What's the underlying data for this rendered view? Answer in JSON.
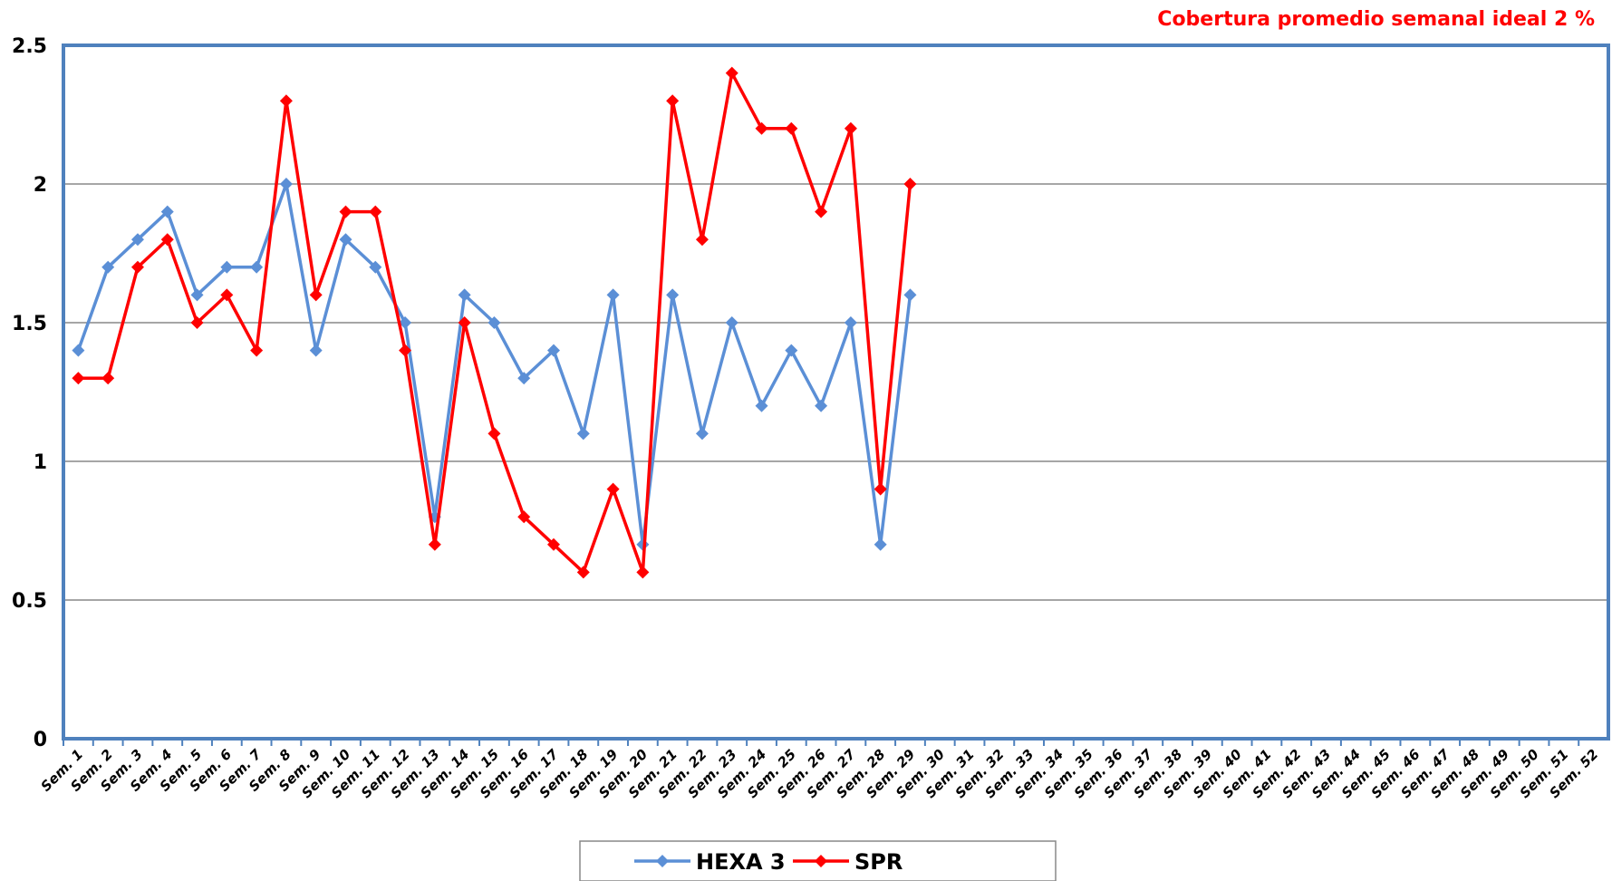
{
  "chart_data": {
    "type": "line",
    "title": "Cobertura promedio semanal ideal 2 %",
    "categories": [
      "Sem. 1",
      "Sem. 2",
      "Sem. 3",
      "Sem. 4",
      "Sem. 5",
      "Sem. 6",
      "Sem. 7",
      "Sem. 8",
      "Sem. 9",
      "Sem. 10",
      "Sem. 11",
      "Sem. 12",
      "Sem. 13",
      "Sem. 14",
      "Sem. 15",
      "Sem. 16",
      "Sem. 17",
      "Sem. 18",
      "Sem. 19",
      "Sem. 20",
      "Sem. 21",
      "Sem. 22",
      "Sem. 23",
      "Sem. 24",
      "Sem. 25",
      "Sem. 26",
      "Sem. 27",
      "Sem. 28",
      "Sem. 29",
      "Sem. 30",
      "Sem. 31",
      "Sem. 32",
      "Sem. 33",
      "Sem. 34",
      "Sem. 35",
      "Sem. 36",
      "Sem. 37",
      "Sem. 38",
      "Sem. 39",
      "Sem. 40",
      "Sem. 41",
      "Sem. 42",
      "Sem. 43",
      "Sem. 44",
      "Sem. 45",
      "Sem. 46",
      "Sem. 47",
      "Sem. 48",
      "Sem. 49",
      "Sem. 50",
      "Sem. 51",
      "Sem. 52"
    ],
    "series": [
      {
        "name": "HEXA 3",
        "color": "#5b8fd6",
        "values": [
          1.4,
          1.7,
          1.8,
          1.9,
          1.6,
          1.7,
          1.7,
          2.0,
          1.4,
          1.8,
          1.7,
          1.5,
          0.8,
          1.6,
          1.5,
          1.3,
          1.4,
          1.1,
          1.6,
          0.7,
          1.6,
          1.1,
          1.5,
          1.2,
          1.4,
          1.2,
          1.5,
          0.7,
          1.6,
          null,
          null,
          null,
          null,
          null,
          null,
          null,
          null,
          null,
          null,
          null,
          null,
          null,
          null,
          null,
          null,
          null,
          null,
          null,
          null,
          null,
          null,
          null
        ]
      },
      {
        "name": "SPR",
        "color": "#ff0000",
        "values": [
          1.3,
          1.3,
          1.7,
          1.8,
          1.5,
          1.6,
          1.4,
          2.3,
          1.6,
          1.9,
          1.9,
          1.4,
          0.7,
          1.5,
          1.1,
          0.8,
          0.7,
          0.6,
          0.9,
          0.6,
          2.3,
          1.8,
          2.4,
          2.2,
          2.2,
          1.9,
          2.2,
          0.9,
          2.0,
          null,
          null,
          null,
          null,
          null,
          null,
          null,
          null,
          null,
          null,
          null,
          null,
          null,
          null,
          null,
          null,
          null,
          null,
          null,
          null,
          null,
          null,
          null
        ]
      }
    ],
    "ylim": [
      0,
      2.5
    ],
    "yticks": [
      0,
      0.5,
      1,
      1.5,
      2,
      2.5
    ],
    "grid": true
  }
}
